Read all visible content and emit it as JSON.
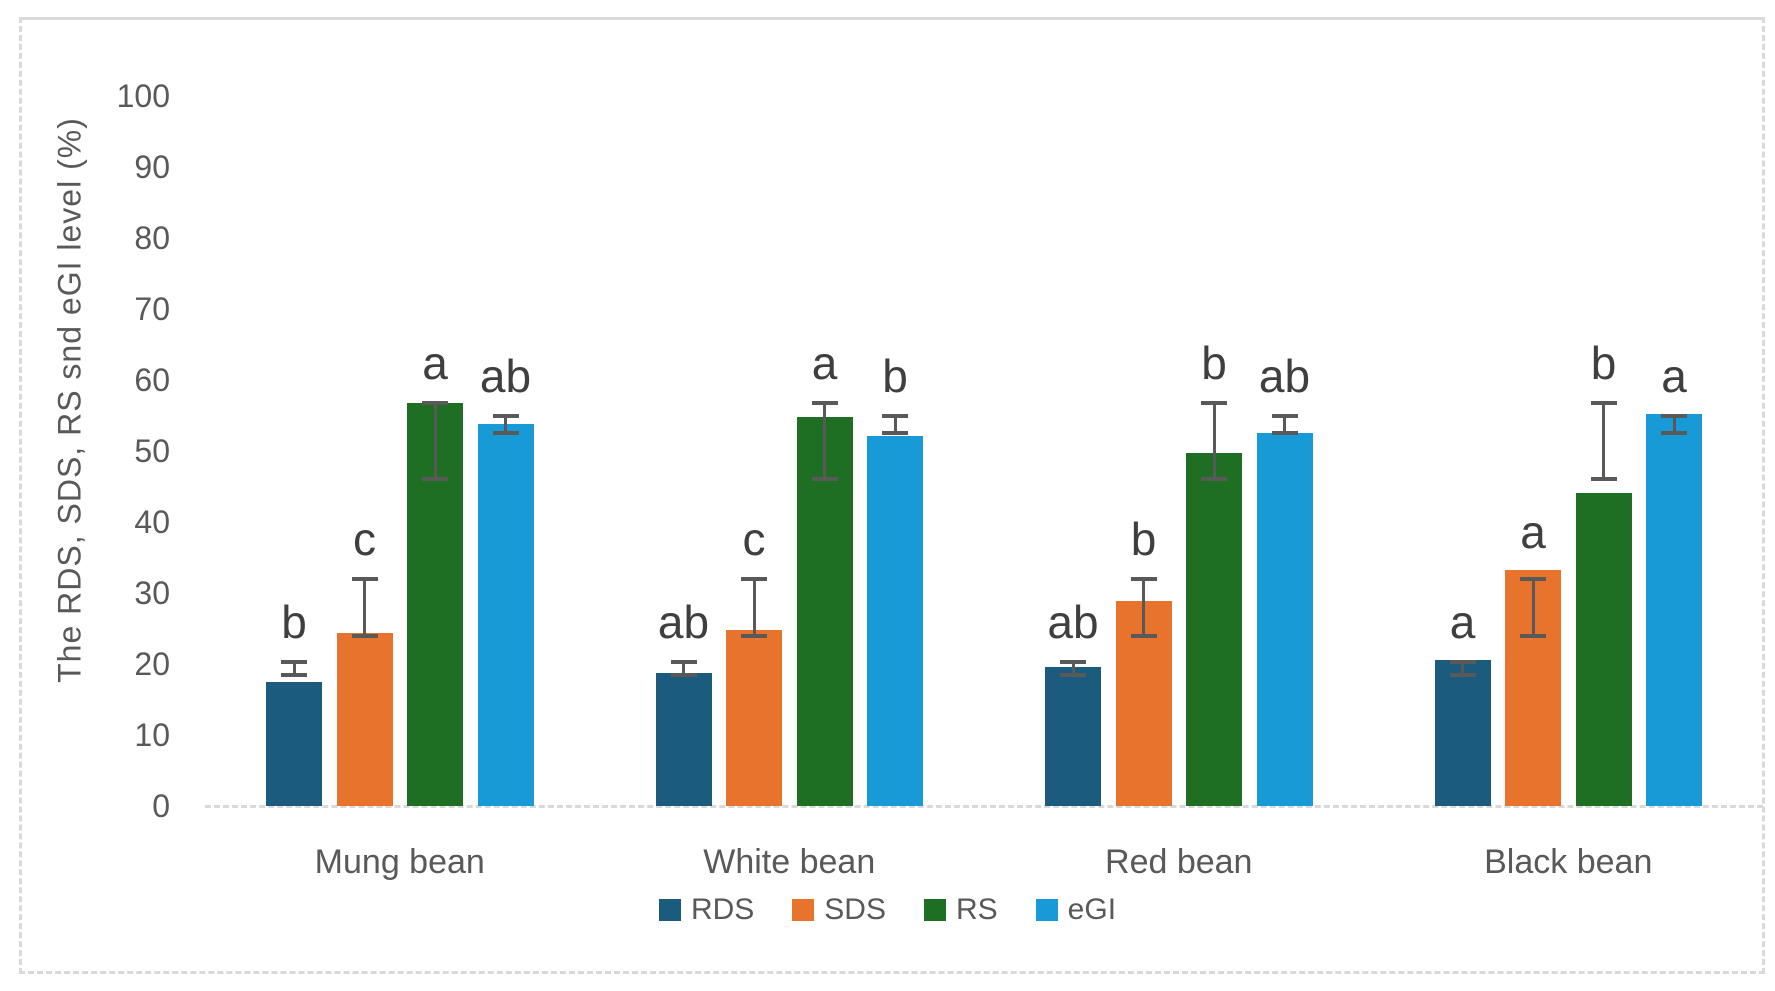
{
  "chart_data": {
    "type": "bar",
    "title": "",
    "xlabel": "",
    "ylabel": "The RDS, SDS, RS snd eGI level (%)",
    "categories": [
      "Mung bean",
      "White bean",
      "Red bean",
      "Black bean"
    ],
    "ylim": [
      0,
      100
    ],
    "yticks": [
      0,
      10,
      20,
      30,
      40,
      50,
      60,
      70,
      80,
      90,
      100
    ],
    "grid": false,
    "legend_position": "bottom",
    "series": [
      {
        "name": "RDS",
        "color": "#1B5B7D",
        "values": [
          17.5,
          18.8,
          19.6,
          20.6
        ],
        "sig_letters": [
          "b",
          "ab",
          "ab",
          "a"
        ],
        "error_bar_range": [
          18.2,
          20.6
        ]
      },
      {
        "name": "SDS",
        "color": "#E8732D",
        "values": [
          24.4,
          24.8,
          28.9,
          33.2
        ],
        "sig_letters": [
          "c",
          "c",
          "b",
          "a"
        ],
        "error_bar_range": [
          23.7,
          32.2
        ]
      },
      {
        "name": "RS",
        "color": "#1E6E24",
        "values": [
          56.8,
          54.8,
          49.7,
          44.1
        ],
        "sig_letters": [
          "a",
          "a",
          "b",
          "b"
        ],
        "error_bar_range": [
          45.8,
          57.1
        ]
      },
      {
        "name": "eGI",
        "color": "#189AD6",
        "values": [
          53.8,
          52.1,
          52.6,
          55.2
        ],
        "sig_letters": [
          "ab",
          "b",
          "ab",
          "a"
        ],
        "error_bar_range": [
          52.3,
          55.2
        ]
      }
    ],
    "colors": {
      "axis_text": "#595959",
      "significance_letter_text": "#3F3F3F",
      "error_bar": "#595959",
      "axis_line": "#D9D9D9",
      "frame_border": "#D9D9D9",
      "background": "#FFFFFF"
    }
  }
}
